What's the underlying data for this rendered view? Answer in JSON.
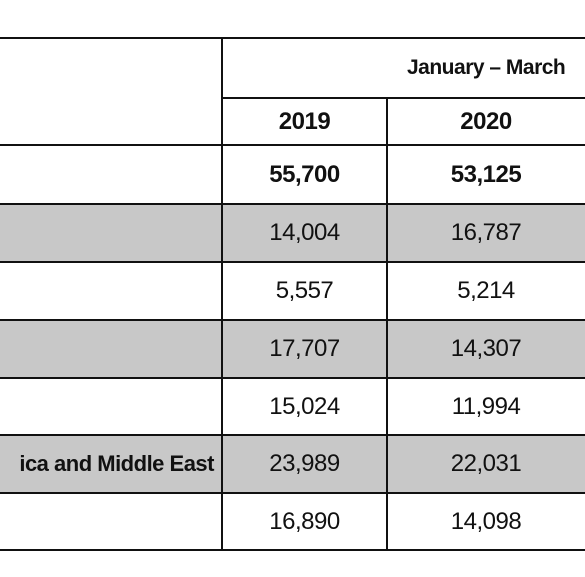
{
  "table": {
    "header": {
      "period": "January – March",
      "years": [
        "2019",
        "2020"
      ]
    },
    "rows": [
      {
        "cells": [
          "55,700",
          "53,125"
        ],
        "bold": true
      },
      {
        "cells": [
          "14,004",
          "16,787"
        ],
        "shaded": true
      },
      {
        "cells": [
          "5,557",
          "5,214"
        ]
      },
      {
        "cells": [
          "17,707",
          "14,307"
        ],
        "shaded": true
      },
      {
        "cells": [
          "15,024",
          "11,994"
        ]
      },
      {
        "label": "ica and Middle East",
        "cells": [
          "23,989",
          "22,031"
        ],
        "shaded": true
      },
      {
        "cells": [
          "16,890",
          "14,098"
        ]
      }
    ]
  }
}
